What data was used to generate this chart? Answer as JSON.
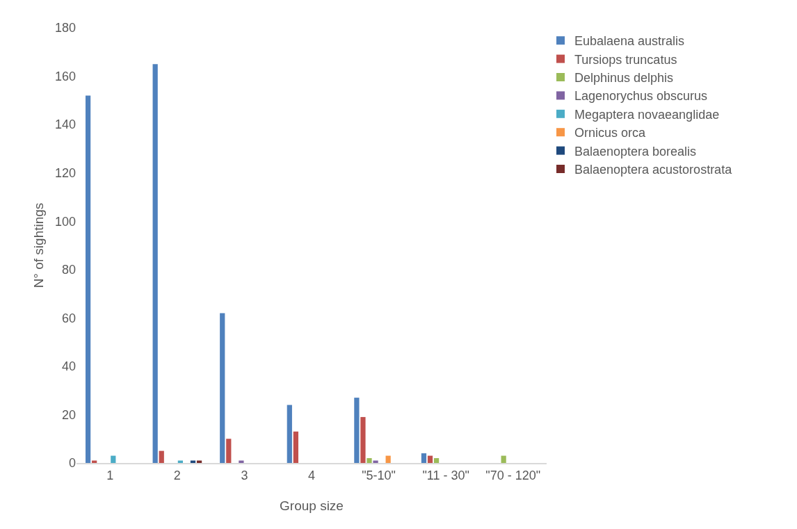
{
  "chart_data": {
    "type": "bar",
    "xlabel": "Group size",
    "ylabel": "N° of sightings",
    "categories": [
      "1",
      "2",
      "3",
      "4",
      "\"5-10\"",
      "\"11 - 30\"",
      "\"70 - 120\""
    ],
    "series": [
      {
        "name": "Eubalaena australis",
        "color": "#4f81bd",
        "values": [
          152,
          165,
          62,
          24,
          27,
          4,
          0
        ]
      },
      {
        "name": "Tursiops truncatus",
        "color": "#c0504d",
        "values": [
          1,
          5,
          10,
          13,
          19,
          3,
          0
        ]
      },
      {
        "name": "Delphinus delphis",
        "color": "#9bbb59",
        "values": [
          0,
          0,
          0,
          0,
          2,
          2,
          3
        ]
      },
      {
        "name": "Lagenorychus obscurus",
        "color": "#8064a2",
        "values": [
          0,
          0,
          1,
          0,
          1,
          0,
          0
        ]
      },
      {
        "name": "Megaptera novaeanglidae",
        "color": "#4bacc6",
        "values": [
          3,
          1,
          0,
          0,
          0,
          0,
          0
        ]
      },
      {
        "name": "Ornicus orca",
        "color": "#f79646",
        "values": [
          0,
          0,
          0,
          0,
          3,
          0,
          0
        ]
      },
      {
        "name": "Balaenoptera borealis",
        "color": "#1f497d",
        "values": [
          0,
          1,
          0,
          0,
          0,
          0,
          0
        ]
      },
      {
        "name": "Balaenoptera acustorostrata",
        "color": "#772c2a",
        "values": [
          0,
          1,
          0,
          0,
          0,
          0,
          0
        ]
      }
    ],
    "ylim": [
      0,
      180
    ],
    "yticks": [
      0,
      20,
      40,
      60,
      80,
      100,
      120,
      140,
      160,
      180
    ],
    "grid": false,
    "legend": "top right"
  }
}
